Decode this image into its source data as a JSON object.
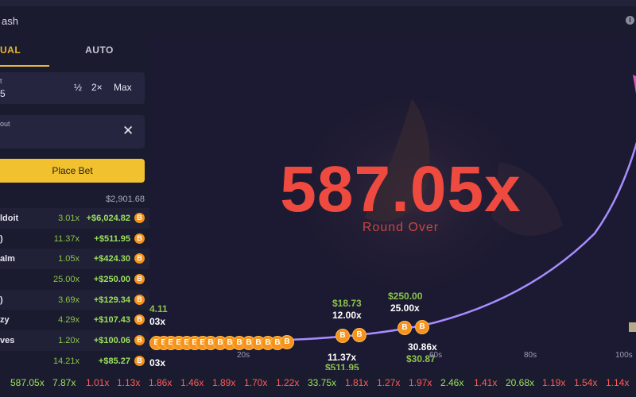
{
  "header": {
    "title": "ash"
  },
  "tabs": {
    "manual": "UAL",
    "auto": "AUTO"
  },
  "bet_amount": {
    "label": "t",
    "value": "5",
    "half": "½",
    "double": "2×",
    "max": "Max"
  },
  "cashout": {
    "label": "out",
    "clear": "✕"
  },
  "place_bet": "Place Bet",
  "total": "$2,901.68",
  "bets": [
    {
      "name": "ldoit",
      "mult": "3.01x",
      "profit": "+$6,024.82"
    },
    {
      "name": ")",
      "mult": "11.37x",
      "profit": "+$511.95"
    },
    {
      "name": "alm",
      "mult": "1.05x",
      "profit": "+$424.30"
    },
    {
      "name": "",
      "mult": "25.00x",
      "profit": "+$250.00"
    },
    {
      "name": ")",
      "mult": "3.69x",
      "profit": "+$129.34"
    },
    {
      "name": "zy",
      "mult": "4.29x",
      "profit": "+$107.43"
    },
    {
      "name": "ves",
      "mult": "1.20x",
      "profit": "+$100.06"
    },
    {
      "name": "",
      "mult": "14.21x",
      "profit": "+$85.27"
    }
  ],
  "coin_symbol": "B",
  "game": {
    "multiplier": "587.05x",
    "status": "Round Over",
    "chips": [
      {
        "text": "4.11",
        "color": "green"
      },
      {
        "text": "03x",
        "color": "white"
      },
      {
        "text": "03x",
        "color": "white"
      },
      {
        "text": "$18.73",
        "color": "green"
      },
      {
        "text": "12.00x",
        "color": "white"
      },
      {
        "text": "$250.00",
        "color": "green"
      },
      {
        "text": "25.00x",
        "color": "white"
      },
      {
        "text": "11.37x",
        "color": "white"
      },
      {
        "text": "$511.95",
        "color": "green"
      },
      {
        "text": "30.86x",
        "color": "white"
      },
      {
        "text": "$30.87",
        "color": "green"
      }
    ],
    "axis": [
      "20s",
      "60s",
      "80s",
      "100s"
    ]
  },
  "colors": {
    "accent": "#f1c12f",
    "crash_red": "#ee4a3f",
    "win_green": "#9be15d",
    "curve": "#a88cff"
  },
  "history": [
    {
      "v": "587.05x",
      "c": "g"
    },
    {
      "v": "7.87x",
      "c": "g"
    },
    {
      "v": "1.01x",
      "c": "r"
    },
    {
      "v": "1.13x",
      "c": "r"
    },
    {
      "v": "1.86x",
      "c": "r"
    },
    {
      "v": "1.46x",
      "c": "r"
    },
    {
      "v": "1.89x",
      "c": "r"
    },
    {
      "v": "1.70x",
      "c": "r"
    },
    {
      "v": "1.22x",
      "c": "r"
    },
    {
      "v": "33.75x",
      "c": "g"
    },
    {
      "v": "1.81x",
      "c": "r"
    },
    {
      "v": "1.27x",
      "c": "r"
    },
    {
      "v": "1.97x",
      "c": "r"
    },
    {
      "v": "2.46x",
      "c": "g"
    },
    {
      "v": "1.41x",
      "c": "r"
    },
    {
      "v": "20.68x",
      "c": "g"
    },
    {
      "v": "1.19x",
      "c": "r"
    },
    {
      "v": "1.54x",
      "c": "r"
    },
    {
      "v": "1.14x",
      "c": "r"
    }
  ]
}
